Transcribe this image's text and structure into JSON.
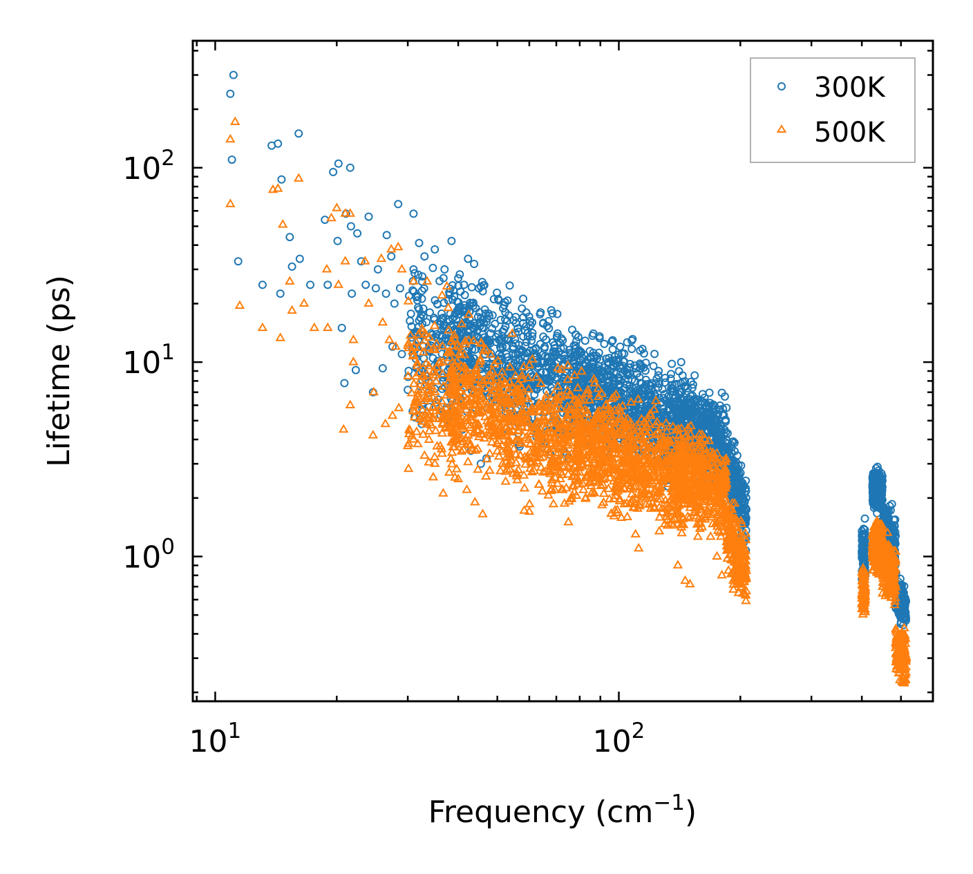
{
  "chart_data": {
    "type": "scatter",
    "title": "",
    "xlabel": "Frequency (cm",
    "xlabel_sup": "−1",
    "xlabel_close": ")",
    "ylabel": "Lifetime (ps)",
    "xscale": "log",
    "yscale": "log",
    "xlim": [
      8.8,
      600
    ],
    "ylim": [
      0.18,
      450
    ],
    "x_ticks": [
      {
        "value": 10,
        "base": "10",
        "exp": "1"
      },
      {
        "value": 100,
        "base": "10",
        "exp": "2"
      }
    ],
    "y_ticks": [
      {
        "value": 1,
        "base": "10",
        "exp": "0"
      },
      {
        "value": 10,
        "base": "10",
        "exp": "1"
      },
      {
        "value": 100,
        "base": "10",
        "exp": "2"
      }
    ],
    "legend": {
      "position": "top-right",
      "entries": [
        "300K",
        "500K"
      ]
    },
    "series": [
      {
        "name": "300K",
        "marker": "circle",
        "color": "#1f77b4",
        "points": [
          [
            11.1,
            300
          ],
          [
            10.9,
            240
          ],
          [
            11.0,
            110
          ],
          [
            11.4,
            33
          ],
          [
            13.8,
            130
          ],
          [
            14.3,
            133
          ],
          [
            14.6,
            87
          ],
          [
            16.1,
            150
          ],
          [
            13.1,
            25
          ],
          [
            14.5,
            22.5
          ],
          [
            15.3,
            44
          ],
          [
            15.5,
            31
          ],
          [
            16.2,
            34
          ],
          [
            17.2,
            25
          ],
          [
            19.6,
            95
          ],
          [
            20.2,
            105
          ],
          [
            21.6,
            100
          ],
          [
            18.7,
            54
          ],
          [
            19.0,
            25
          ],
          [
            20.1,
            42
          ],
          [
            21.1,
            58
          ],
          [
            21.7,
            50
          ],
          [
            22.5,
            46
          ],
          [
            21.8,
            22.5
          ],
          [
            20.6,
            15
          ],
          [
            20.9,
            7.8
          ],
          [
            22.3,
            9.1
          ],
          [
            24.0,
            56
          ],
          [
            25.3,
            30
          ],
          [
            26.6,
            45
          ],
          [
            27.3,
            35
          ],
          [
            28.4,
            65
          ],
          [
            31.0,
            58
          ],
          [
            32.0,
            41
          ],
          [
            38.5,
            42
          ],
          [
            42.3,
            34
          ],
          [
            43.8,
            32
          ],
          [
            23.0,
            33
          ],
          [
            23.6,
            25
          ],
          [
            25.0,
            24
          ],
          [
            26.5,
            22.5
          ],
          [
            27.8,
            20
          ],
          [
            28.7,
            24
          ],
          [
            24.6,
            7.0
          ],
          [
            26.0,
            9.3
          ],
          [
            27.5,
            12
          ],
          [
            29.0,
            11
          ],
          [
            31.0,
            30
          ],
          [
            33.0,
            35
          ],
          [
            35.0,
            38
          ],
          [
            37.0,
            30
          ],
          [
            40.0,
            27
          ],
          [
            45.0,
            24
          ],
          [
            30.0,
            7.2
          ],
          [
            31.2,
            5.2
          ],
          [
            32.5,
            4.8
          ],
          [
            41.0,
            4.5
          ],
          [
            43.0,
            3.5
          ],
          [
            45.5,
            3.0
          ],
          [
            47.0,
            3.2
          ],
          [
            64.0,
            18
          ],
          [
            68.0,
            18.5
          ],
          [
            61.0,
            16
          ],
          [
            58.0,
            17
          ],
          [
            90.0,
            10.3
          ],
          [
            93.0,
            10.4
          ],
          [
            145.0,
            6.4
          ],
          [
            171.0,
            5.7
          ],
          [
            186.0,
            4.3
          ]
        ],
        "clusters": [
          {
            "xmin": 30,
            "xmax": 40,
            "logy_center": 1.08,
            "logy_spread": 0.28,
            "slope": -0.9,
            "count": 170
          },
          {
            "xmin": 38,
            "xmax": 80,
            "logy_center": 0.98,
            "logy_spread": 0.26,
            "slope": -0.9,
            "count": 700
          },
          {
            "xmin": 78,
            "xmax": 145,
            "logy_center": 0.78,
            "logy_spread": 0.22,
            "slope": -0.8,
            "count": 800
          },
          {
            "xmin": 140,
            "xmax": 185,
            "logy_center": 0.63,
            "logy_spread": 0.18,
            "slope": -1.1,
            "count": 450
          },
          {
            "xmin": 185,
            "xmax": 207,
            "logy_center": 0.35,
            "logy_spread": 0.16,
            "slope": -5.0,
            "count": 200
          },
          {
            "xmin": 400,
            "xmax": 408,
            "logy_center": 0.02,
            "logy_spread": 0.12,
            "slope": 0,
            "count": 90
          },
          {
            "xmin": 425,
            "xmax": 450,
            "logy_center": 0.34,
            "logy_spread": 0.08,
            "slope": 0.5,
            "count": 240
          },
          {
            "xmin": 450,
            "xmax": 485,
            "logy_center": 0.1,
            "logy_spread": 0.12,
            "slope": -2.5,
            "count": 200
          },
          {
            "xmin": 485,
            "xmax": 515,
            "logy_center": -0.23,
            "logy_spread": 0.08,
            "slope": -2.0,
            "count": 150
          }
        ]
      },
      {
        "name": "500K",
        "marker": "triangle",
        "color": "#ff7f0e",
        "points": [
          [
            11.2,
            172
          ],
          [
            10.9,
            140
          ],
          [
            10.9,
            65
          ],
          [
            11.5,
            19.5
          ],
          [
            13.1,
            15
          ],
          [
            13.9,
            77
          ],
          [
            14.3,
            78
          ],
          [
            14.7,
            51
          ],
          [
            14.5,
            13.3
          ],
          [
            15.3,
            26
          ],
          [
            15.5,
            18.4
          ],
          [
            16.1,
            88
          ],
          [
            16.6,
            20
          ],
          [
            17.6,
            15
          ],
          [
            18.9,
            30
          ],
          [
            19.4,
            55
          ],
          [
            20.0,
            62
          ],
          [
            21.0,
            58
          ],
          [
            21.6,
            58
          ],
          [
            20.2,
            25
          ],
          [
            21.0,
            33
          ],
          [
            19.0,
            15
          ],
          [
            22.0,
            13
          ],
          [
            22.0,
            10
          ],
          [
            21.6,
            6.0
          ],
          [
            20.8,
            4.5
          ],
          [
            23.5,
            33
          ],
          [
            24.0,
            20
          ],
          [
            25.8,
            34
          ],
          [
            27.3,
            38
          ],
          [
            28.4,
            39
          ],
          [
            29.0,
            30
          ],
          [
            31.0,
            26
          ],
          [
            33.5,
            26
          ],
          [
            37.5,
            24.5
          ],
          [
            37.8,
            19
          ],
          [
            36.5,
            22
          ],
          [
            26.0,
            16
          ],
          [
            27.0,
            13
          ],
          [
            28.0,
            12
          ],
          [
            24.7,
            7.0
          ],
          [
            26.4,
            4.8
          ],
          [
            27.5,
            5.3
          ],
          [
            28.5,
            5.8
          ],
          [
            24.6,
            4.2
          ],
          [
            30.0,
            3.7
          ],
          [
            31.0,
            4.0
          ],
          [
            33.0,
            3.3
          ],
          [
            35.0,
            3.0
          ],
          [
            38.0,
            2.7
          ],
          [
            40.0,
            2.5
          ],
          [
            42.0,
            2.2
          ],
          [
            44.0,
            1.9
          ],
          [
            46.0,
            1.65
          ],
          [
            60.0,
            1.7
          ],
          [
            75.0,
            1.5
          ],
          [
            110.0,
            1.3
          ],
          [
            112.0,
            1.1
          ],
          [
            140.0,
            0.9
          ],
          [
            146.0,
            0.75
          ],
          [
            150.0,
            0.72
          ],
          [
            175.0,
            1.0
          ],
          [
            180.0,
            0.8
          ]
        ],
        "clusters": [
          {
            "xmin": 30,
            "xmax": 40,
            "logy_center": 0.82,
            "logy_spread": 0.28,
            "slope": -0.9,
            "count": 170
          },
          {
            "xmin": 38,
            "xmax": 80,
            "logy_center": 0.69,
            "logy_spread": 0.26,
            "slope": -0.9,
            "count": 700
          },
          {
            "xmin": 78,
            "xmax": 145,
            "logy_center": 0.5,
            "logy_spread": 0.22,
            "slope": -0.8,
            "count": 800
          },
          {
            "xmin": 140,
            "xmax": 185,
            "logy_center": 0.38,
            "logy_spread": 0.18,
            "slope": -1.1,
            "count": 450
          },
          {
            "xmin": 185,
            "xmax": 207,
            "logy_center": 0.03,
            "logy_spread": 0.14,
            "slope": -4.5,
            "count": 200
          },
          {
            "xmin": 400,
            "xmax": 408,
            "logy_center": -0.18,
            "logy_spread": 0.1,
            "slope": 0,
            "count": 90
          },
          {
            "xmin": 425,
            "xmax": 450,
            "logy_center": 0.05,
            "logy_spread": 0.1,
            "slope": 0.8,
            "count": 240
          },
          {
            "xmin": 450,
            "xmax": 485,
            "logy_center": -0.08,
            "logy_spread": 0.12,
            "slope": -2.2,
            "count": 200
          },
          {
            "xmin": 485,
            "xmax": 515,
            "logy_center": -0.5,
            "logy_spread": 0.1,
            "slope": -2.2,
            "count": 150
          }
        ]
      }
    ]
  }
}
